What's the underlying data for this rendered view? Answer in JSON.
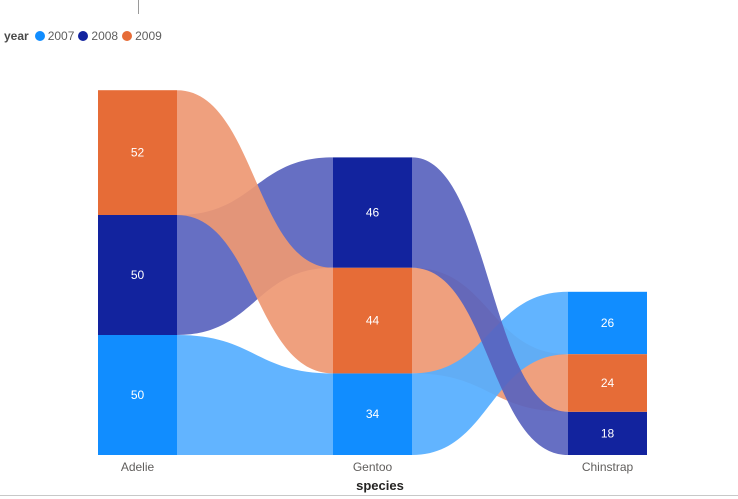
{
  "chart_data": {
    "type": "sankey",
    "legend": {
      "title": "year",
      "entries": [
        {
          "label": "2007",
          "color": "#118DFF"
        },
        {
          "label": "2008",
          "color": "#12239E"
        },
        {
          "label": "2009",
          "color": "#E66C37"
        }
      ]
    },
    "xlabel": "species",
    "categories": [
      "Adelie",
      "Gentoo",
      "Chinstrap"
    ],
    "series": [
      {
        "name": "2009",
        "values": [
          52,
          44,
          24
        ]
      },
      {
        "name": "2008",
        "values": [
          50,
          46,
          18
        ]
      },
      {
        "name": "2007",
        "values": [
          50,
          34,
          26
        ]
      }
    ],
    "stack_order": [
      [
        "2009",
        "2008",
        "2007"
      ],
      [
        "2008",
        "2009",
        "2007"
      ],
      [
        "2007",
        "2009",
        "2008"
      ]
    ]
  }
}
